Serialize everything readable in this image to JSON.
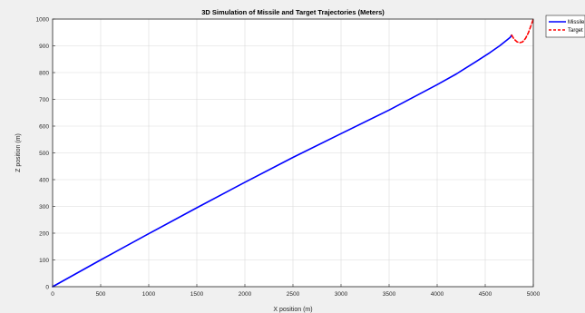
{
  "chart_data": {
    "type": "line",
    "title": "3D Simulation of Missile and Target Trajectories (Meters)",
    "xlabel": "X position (m)",
    "ylabel": "Z position (m)",
    "xlim": [
      0,
      5000
    ],
    "ylim": [
      0,
      1000
    ],
    "xticks": [
      0,
      500,
      1000,
      1500,
      2000,
      2500,
      3000,
      3500,
      4000,
      4500,
      5000
    ],
    "yticks": [
      0,
      100,
      200,
      300,
      400,
      500,
      600,
      700,
      800,
      900,
      1000
    ],
    "grid": true,
    "legend_position": "top-right",
    "series": [
      {
        "name": "Missile",
        "color": "#0000ff",
        "style": "solid",
        "x": [
          0,
          500,
          1000,
          1500,
          2000,
          2500,
          3000,
          3500,
          4000,
          4200,
          4400,
          4550,
          4650,
          4720,
          4760,
          4775
        ],
        "y": [
          0,
          100,
          198,
          295,
          390,
          483,
          572,
          660,
          755,
          795,
          840,
          875,
          900,
          920,
          932,
          940
        ]
      },
      {
        "name": "Target",
        "color": "#ff0000",
        "style": "dashed",
        "x": [
          4775,
          4800,
          4830,
          4860,
          4890,
          4920,
          4950,
          4975,
          5000
        ],
        "y": [
          940,
          925,
          915,
          912,
          915,
          928,
          950,
          975,
          1000
        ]
      }
    ]
  }
}
